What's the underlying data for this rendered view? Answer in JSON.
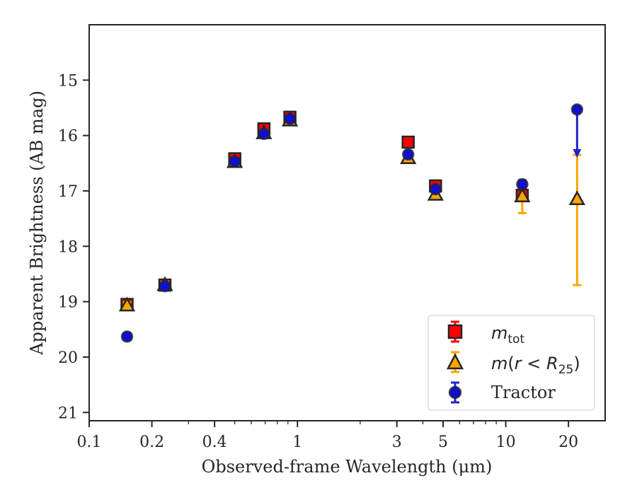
{
  "chart_data": {
    "type": "scatter",
    "xlabel": "Observed-frame Wavelength (μm)",
    "ylabel": "Apparent Brightness (AB mag)",
    "xscale": "log",
    "yinvert": true,
    "xlim": [
      0.1,
      30
    ],
    "ylim": [
      21.15,
      14.0
    ],
    "xticks": [
      0.1,
      0.2,
      0.4,
      1,
      3,
      5,
      10,
      20
    ],
    "xtick_labels": [
      "0.1",
      "0.2",
      "0.4",
      "1",
      "3",
      "5",
      "10",
      "20"
    ],
    "yticks": [
      15,
      16,
      17,
      18,
      19,
      20,
      21
    ],
    "ytick_labels": [
      "15",
      "16",
      "17",
      "18",
      "19",
      "20",
      "21"
    ],
    "legend_position": "lower-right",
    "series": [
      {
        "key": "mtot",
        "name": "m_tot",
        "marker": "square",
        "color": "#ff0000",
        "errcolor": "#ff0000",
        "points": [
          {
            "x": 0.152,
            "y": 19.05,
            "err": 0.05
          },
          {
            "x": 0.231,
            "y": 18.7,
            "err": 0.05
          },
          {
            "x": 0.5,
            "y": 16.42,
            "err": 0.04
          },
          {
            "x": 0.69,
            "y": 15.88,
            "err": 0.04
          },
          {
            "x": 0.92,
            "y": 15.67,
            "err": 0.04
          },
          {
            "x": 3.4,
            "y": 16.12,
            "err": 0.03
          },
          {
            "x": 4.6,
            "y": 16.91,
            "err": 0.03
          },
          {
            "x": 12.0,
            "y": 17.08,
            "err": 0.05
          }
        ]
      },
      {
        "key": "mr25",
        "name": "m(r<R_25)",
        "marker": "triangle",
        "color": "#ffa500",
        "errcolor": "#ffa500",
        "points": [
          {
            "x": 0.152,
            "y": 19.07,
            "err": 0.06
          },
          {
            "x": 0.231,
            "y": 18.7,
            "err": 0.06
          },
          {
            "x": 0.5,
            "y": 16.48,
            "err": 0.05
          },
          {
            "x": 0.69,
            "y": 15.96,
            "err": 0.05
          },
          {
            "x": 0.92,
            "y": 15.73,
            "err": 0.05
          },
          {
            "x": 3.4,
            "y": 16.41,
            "err": 0.05
          },
          {
            "x": 4.6,
            "y": 17.07,
            "err": 0.05
          },
          {
            "x": 12.0,
            "y": 17.1,
            "err": 0.3
          },
          {
            "x": 22.0,
            "y": 17.15,
            "err_lo": 0.8,
            "err_hi": 1.55
          }
        ]
      },
      {
        "key": "tractor",
        "name": "Tractor",
        "marker": "circle",
        "color": "#1010d0",
        "errcolor": "#2222cc",
        "points": [
          {
            "x": 0.152,
            "y": 19.63,
            "err": 0.06
          },
          {
            "x": 0.231,
            "y": 18.72,
            "err": 0.05
          },
          {
            "x": 0.5,
            "y": 16.47,
            "err": 0.04
          },
          {
            "x": 0.69,
            "y": 15.97,
            "err": 0.04
          },
          {
            "x": 0.92,
            "y": 15.7,
            "err": 0.04
          },
          {
            "x": 3.4,
            "y": 16.34,
            "err": 0.04
          },
          {
            "x": 4.6,
            "y": 16.97,
            "err": 0.04
          },
          {
            "x": 12.0,
            "y": 16.88,
            "err": 0.07
          },
          {
            "x": 22.0,
            "y": 15.53,
            "upper_limit_arrow_to": 16.36
          }
        ]
      }
    ]
  },
  "legend": {
    "mtot_base": "m",
    "mtot_sub": "tot",
    "mr25_pre": "m",
    "mr25_mid": "(",
    "mr25_r": "r",
    "mr25_lt": " < ",
    "mr25_R": "R",
    "mr25_sub": "25",
    "mr25_close": ")",
    "tractor": "Tractor"
  }
}
